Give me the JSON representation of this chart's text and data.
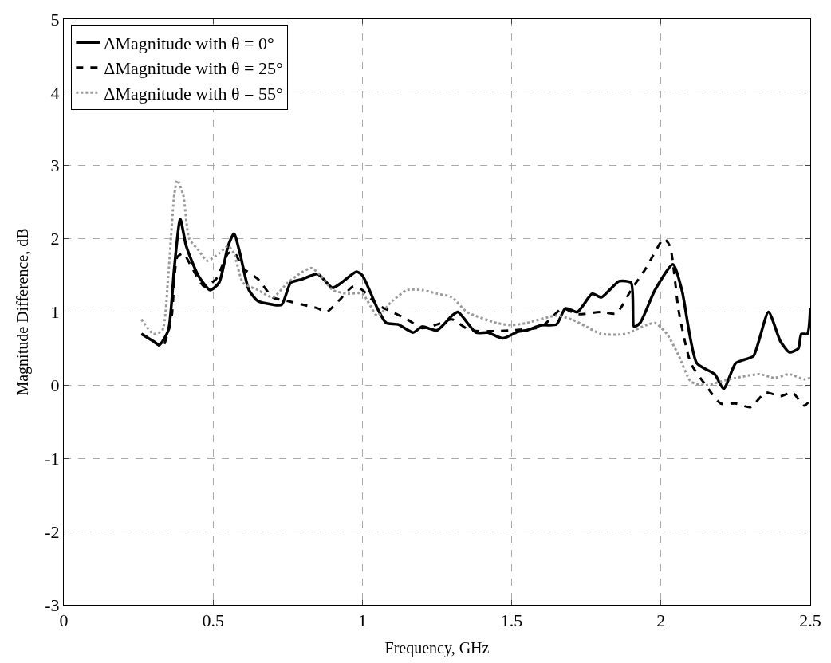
{
  "chart_data": {
    "type": "line",
    "xlabel": "Frequency, GHz",
    "ylabel": "Magnitude Difference, dB",
    "xlim": [
      0,
      2.5
    ],
    "xticks": [
      0,
      0.5,
      1,
      1.5,
      2,
      2.5
    ],
    "ylim": [
      -3,
      5
    ],
    "yticks": [
      -3,
      -2,
      -1,
      0,
      1,
      2,
      3,
      4,
      5
    ],
    "grid": true,
    "legend": "top left",
    "marker": "none",
    "series": [
      {
        "name": "ΔMagnitude with θ = 0°",
        "color": "#000000",
        "line_style": "solid",
        "x": [
          0.26,
          0.3,
          0.32,
          0.35,
          0.37,
          0.39,
          0.41,
          0.45,
          0.49,
          0.52,
          0.55,
          0.57,
          0.59,
          0.62,
          0.65,
          0.7,
          0.73,
          0.76,
          0.8,
          0.85,
          0.9,
          0.93,
          0.98,
          1.0,
          1.05,
          1.08,
          1.12,
          1.17,
          1.2,
          1.25,
          1.3,
          1.32,
          1.38,
          1.42,
          1.47,
          1.52,
          1.55,
          1.6,
          1.65,
          1.68,
          1.72,
          1.77,
          1.8,
          1.86,
          1.9,
          1.91,
          1.93,
          1.98,
          2.04,
          2.07,
          2.12,
          2.18,
          2.21,
          2.25,
          2.28,
          2.31,
          2.36,
          2.4,
          2.43,
          2.46,
          2.47,
          2.49,
          2.5
        ],
        "values": [
          0.7,
          0.6,
          0.55,
          0.75,
          1.6,
          2.27,
          1.9,
          1.5,
          1.3,
          1.4,
          1.9,
          2.07,
          1.8,
          1.3,
          1.15,
          1.1,
          1.1,
          1.4,
          1.45,
          1.52,
          1.33,
          1.4,
          1.55,
          1.5,
          1.05,
          0.85,
          0.83,
          0.72,
          0.8,
          0.75,
          0.95,
          1.0,
          0.72,
          0.72,
          0.64,
          0.73,
          0.75,
          0.82,
          0.83,
          1.05,
          1.0,
          1.25,
          1.2,
          1.42,
          1.4,
          0.8,
          0.85,
          1.3,
          1.65,
          1.3,
          0.3,
          0.15,
          -0.05,
          0.3,
          0.35,
          0.4,
          1.0,
          0.6,
          0.45,
          0.5,
          0.7,
          0.7,
          1.05
        ]
      },
      {
        "name": "ΔMagnitude with θ = 25°",
        "color": "#000000",
        "line_style": "dashed",
        "x": [
          0.26,
          0.3,
          0.33,
          0.36,
          0.38,
          0.4,
          0.43,
          0.47,
          0.51,
          0.55,
          0.57,
          0.6,
          0.65,
          0.7,
          0.75,
          0.8,
          0.85,
          0.88,
          0.92,
          0.97,
          1.0,
          1.05,
          1.1,
          1.15,
          1.2,
          1.25,
          1.3,
          1.36,
          1.45,
          1.5,
          1.6,
          1.67,
          1.72,
          1.8,
          1.85,
          1.9,
          1.95,
          2.01,
          2.03,
          2.06,
          2.1,
          2.15,
          2.2,
          2.25,
          2.3,
          2.35,
          2.4,
          2.44,
          2.48,
          2.5
        ],
        "values": [
          0.7,
          0.6,
          0.52,
          0.9,
          1.75,
          1.8,
          1.6,
          1.35,
          1.45,
          1.8,
          1.82,
          1.6,
          1.45,
          1.2,
          1.15,
          1.1,
          1.05,
          1.0,
          1.15,
          1.35,
          1.3,
          1.1,
          1.0,
          0.9,
          0.78,
          0.83,
          0.9,
          0.75,
          0.74,
          0.75,
          0.8,
          1.05,
          0.97,
          1.0,
          0.98,
          1.3,
          1.6,
          2.0,
          1.9,
          1.0,
          0.3,
          0.0,
          -0.25,
          -0.25,
          -0.3,
          -0.1,
          -0.15,
          -0.1,
          -0.28,
          -0.2
        ]
      },
      {
        "name": "ΔMagnitude with θ = 55°",
        "color": "#999999",
        "line_style": "dotted",
        "x": [
          0.26,
          0.3,
          0.33,
          0.35,
          0.37,
          0.38,
          0.4,
          0.42,
          0.45,
          0.48,
          0.52,
          0.55,
          0.57,
          0.6,
          0.65,
          0.7,
          0.75,
          0.8,
          0.83,
          0.86,
          0.9,
          0.95,
          1.0,
          1.05,
          1.1,
          1.15,
          1.2,
          1.25,
          1.3,
          1.35,
          1.45,
          1.5,
          1.55,
          1.65,
          1.7,
          1.75,
          1.8,
          1.88,
          1.95,
          1.98,
          2.02,
          2.06,
          2.1,
          2.15,
          2.2,
          2.25,
          2.33,
          2.38,
          2.43,
          2.48,
          2.5
        ],
        "values": [
          0.9,
          0.7,
          0.75,
          1.5,
          2.6,
          2.8,
          2.6,
          2.0,
          1.85,
          1.7,
          1.8,
          1.9,
          1.8,
          1.4,
          1.3,
          1.2,
          1.4,
          1.55,
          1.6,
          1.5,
          1.3,
          1.25,
          1.25,
          0.95,
          1.15,
          1.3,
          1.3,
          1.25,
          1.2,
          1.0,
          0.85,
          0.82,
          0.85,
          0.95,
          0.9,
          0.8,
          0.7,
          0.7,
          0.82,
          0.85,
          0.7,
          0.4,
          0.05,
          0.0,
          0.05,
          0.1,
          0.15,
          0.1,
          0.15,
          0.08,
          0.1
        ]
      }
    ]
  }
}
